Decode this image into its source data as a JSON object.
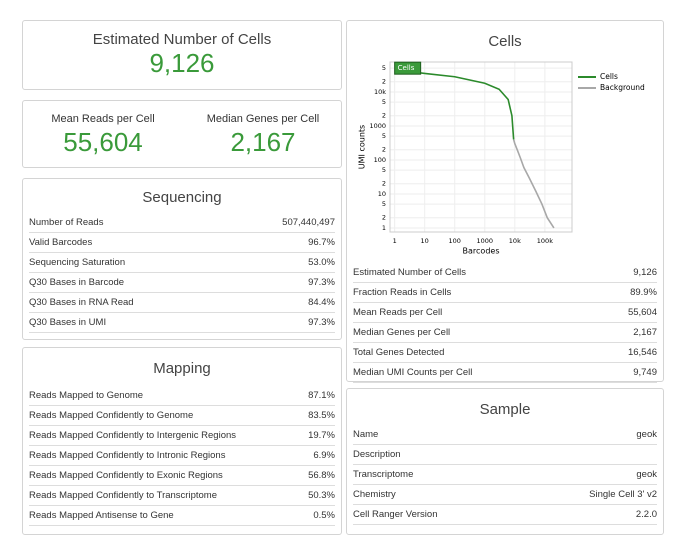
{
  "left": {
    "estimated": {
      "title": "Estimated Number of Cells",
      "value": "9,126"
    },
    "reads": {
      "mean_title": "Mean Reads per Cell",
      "mean_value": "55,604",
      "median_title": "Median Genes per Cell",
      "median_value": "2,167"
    },
    "sequencing": {
      "title": "Sequencing",
      "rows": [
        [
          "Number of Reads",
          "507,440,497"
        ],
        [
          "Valid Barcodes",
          "96.7%"
        ],
        [
          "Sequencing Saturation",
          "53.0%"
        ],
        [
          "Q30 Bases in Barcode",
          "97.3%"
        ],
        [
          "Q30 Bases in RNA Read",
          "84.4%"
        ],
        [
          "Q30 Bases in UMI",
          "97.3%"
        ]
      ]
    },
    "mapping": {
      "title": "Mapping",
      "rows": [
        [
          "Reads Mapped to Genome",
          "87.1%"
        ],
        [
          "Reads Mapped Confidently to Genome",
          "83.5%"
        ],
        [
          "Reads Mapped Confidently to Intergenic Regions",
          "19.7%"
        ],
        [
          "Reads Mapped Confidently to Intronic Regions",
          "6.9%"
        ],
        [
          "Reads Mapped Confidently to Exonic Regions",
          "56.8%"
        ],
        [
          "Reads Mapped Confidently to Transcriptome",
          "50.3%"
        ],
        [
          "Reads Mapped Antisense to Gene",
          "0.5%"
        ]
      ]
    }
  },
  "cells": {
    "title": "Cells",
    "rows": [
      [
        "Estimated Number of Cells",
        "9,126"
      ],
      [
        "Fraction Reads in Cells",
        "89.9%"
      ],
      [
        "Mean Reads per Cell",
        "55,604"
      ],
      [
        "Median Genes per Cell",
        "2,167"
      ],
      [
        "Total Genes Detected",
        "16,546"
      ],
      [
        "Median UMI Counts per Cell",
        "9,749"
      ]
    ]
  },
  "sample": {
    "title": "Sample",
    "rows": [
      [
        "Name",
        "geok"
      ],
      [
        "Description",
        ""
      ],
      [
        "Transcriptome",
        "geok"
      ],
      [
        "Chemistry",
        "Single Cell 3' v2"
      ],
      [
        "Cell Ranger Version",
        "2.2.0"
      ]
    ]
  },
  "chart_data": {
    "type": "line",
    "xlabel": "Barcodes",
    "ylabel": "UMI counts",
    "log_x": true,
    "log_y": true,
    "grid": true,
    "legend": "upper right",
    "xlim": [
      0.7,
      800000
    ],
    "ylim": [
      0.76,
      76000
    ],
    "xticks": [
      1,
      10,
      100,
      1000,
      {
        "value": 10000,
        "label": "10k"
      },
      {
        "value": 100000,
        "label": "100k"
      }
    ],
    "yticks": [
      1,
      {
        "value": 2,
        "label": "2"
      },
      {
        "value": 5,
        "label": "5"
      },
      10,
      {
        "value": 20,
        "label": "2"
      },
      {
        "value": 50,
        "label": "5"
      },
      100,
      {
        "value": 200,
        "label": "2"
      },
      {
        "value": 500,
        "label": "5"
      },
      1000,
      {
        "value": 2000,
        "label": "2"
      },
      {
        "value": 5000,
        "label": "5"
      },
      {
        "value": 10000,
        "label": "10k"
      },
      {
        "value": 20000,
        "label": "2"
      },
      {
        "value": 50000,
        "label": "5"
      }
    ],
    "series": [
      {
        "name": "Cells",
        "color": "#2b8a2b",
        "x": [
          1,
          2,
          10,
          100,
          1000,
          3000,
          6000,
          8000,
          9126
        ],
        "values": [
          50000,
          42000,
          35000,
          28000,
          18000,
          12000,
          6000,
          2000,
          400
        ]
      },
      {
        "name": "Background",
        "color": "#a8a8a8",
        "x": [
          9126,
          10000,
          12000,
          15000,
          20000,
          30000,
          50000,
          80000,
          120000,
          200000
        ],
        "values": [
          400,
          300,
          200,
          120,
          60,
          30,
          12,
          5,
          2,
          1
        ]
      }
    ]
  }
}
